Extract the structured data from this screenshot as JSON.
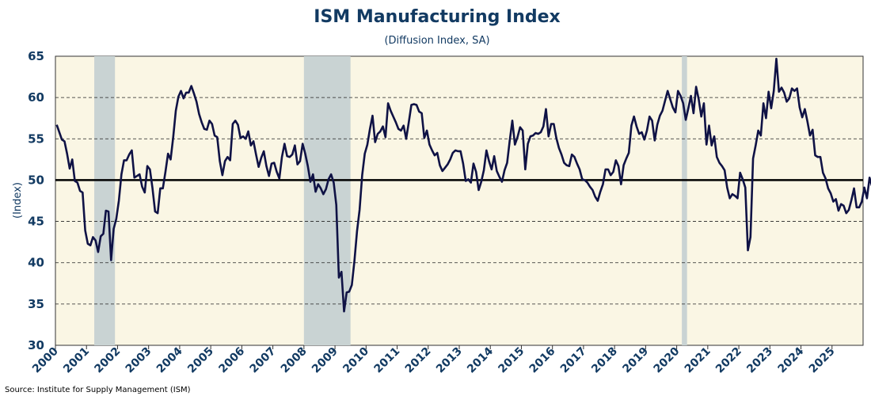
{
  "chart_data": {
    "type": "line",
    "title": "ISM Manufacturing Index",
    "subtitle": "(Diffusion Index, SA)",
    "ylabel": "(Index)",
    "source": "Source: Institute for Supply Management (ISM)",
    "ylim": [
      30,
      65
    ],
    "y_ticks": [
      "30",
      "35",
      "40",
      "45",
      "50",
      "55",
      "60",
      "65"
    ],
    "x_range": [
      "2000-01",
      "2025-12"
    ],
    "x_tick_labels": [
      "2000",
      "2001",
      "2002",
      "2003",
      "2004",
      "2005",
      "2006",
      "2007",
      "2008",
      "2009",
      "2010",
      "2011",
      "2012",
      "2013",
      "2014",
      "2015",
      "2016",
      "2017",
      "2018",
      "2019",
      "2020",
      "2021",
      "2022",
      "2023",
      "2024",
      "2025"
    ],
    "reference_line": 50,
    "grid": "horizontal dashed",
    "plot_background": "#faf6e4",
    "line_color": "#0f1245",
    "recession_color": "#c9d3d3",
    "recessions": [
      {
        "start": "2001-04",
        "end": "2001-11"
      },
      {
        "start": "2008-01",
        "end": "2009-06"
      },
      {
        "start": "2020-03",
        "end": "2020-04"
      }
    ],
    "series": [
      {
        "x_start": "2000-01",
        "frequency": "monthly",
        "values": [
          56.7,
          55.8,
          54.9,
          54.7,
          53.2,
          51.4,
          52.5,
          49.9,
          49.7,
          48.7,
          48.5,
          43.9,
          42.3,
          42.1,
          43.1,
          42.7,
          41.3,
          43.2,
          43.5,
          46.3,
          46.2,
          40.3,
          44.1,
          45.3,
          47.5,
          50.7,
          52.4,
          52.4,
          53.1,
          53.6,
          50.3,
          50.5,
          50.7,
          49.2,
          48.5,
          51.7,
          51.3,
          49.0,
          46.2,
          46.0,
          49.0,
          49.0,
          51.0,
          53.2,
          52.5,
          55.2,
          58.4,
          60.1,
          60.8,
          59.9,
          60.6,
          60.6,
          61.4,
          60.5,
          59.5,
          58.0,
          57.0,
          56.2,
          56.1,
          57.2,
          56.8,
          55.4,
          55.2,
          52.3,
          50.6,
          52.3,
          52.8,
          52.4,
          56.8,
          57.2,
          56.7,
          55.1,
          55.3,
          55.0,
          55.9,
          54.2,
          54.7,
          53.1,
          51.6,
          52.7,
          53.5,
          51.7,
          50.5,
          52.0,
          52.1,
          51.0,
          50.2,
          52.8,
          54.4,
          52.9,
          52.8,
          53.1,
          54.2,
          51.9,
          52.3,
          54.4,
          53.2,
          51.7,
          49.8,
          50.7,
          48.6,
          49.5,
          49.0,
          48.3,
          48.9,
          50.1,
          50.7,
          49.7,
          47.0,
          38.2,
          38.9,
          34.1,
          36.4,
          36.5,
          37.3,
          40.2,
          43.8,
          46.4,
          50.6,
          53.2,
          54.3,
          56.2,
          57.8,
          54.6,
          55.6,
          55.9,
          56.5,
          55.2,
          59.3,
          58.4,
          57.7,
          57.0,
          56.2,
          56.0,
          56.6,
          55.0,
          57.0,
          59.1,
          59.2,
          59.1,
          58.3,
          58.1,
          55.1,
          56.0,
          54.3,
          53.6,
          53.0,
          53.3,
          51.8,
          51.1,
          51.5,
          51.9,
          52.5,
          53.3,
          53.6,
          53.5,
          53.5,
          52.0,
          49.9,
          50.1,
          49.7,
          52.0,
          51.0,
          48.8,
          49.8,
          51.2,
          53.6,
          52.3,
          51.3,
          52.9,
          51.1,
          50.4,
          49.8,
          51.2,
          52.1,
          54.8,
          57.2,
          54.3,
          55.2,
          56.4,
          56.0,
          51.3,
          54.4,
          55.3,
          55.4,
          55.7,
          55.6,
          55.8,
          56.5,
          58.6,
          55.3,
          56.8,
          56.8,
          55.1,
          53.9,
          53.1,
          52.1,
          51.8,
          51.7,
          53.1,
          52.8,
          52.0,
          51.3,
          50.1,
          50.0,
          49.7,
          49.2,
          48.8,
          48.0,
          47.5,
          48.6,
          49.5,
          51.3,
          51.3,
          50.6,
          51.0,
          52.4,
          51.7,
          49.5,
          51.8,
          52.6,
          53.3,
          56.6,
          57.7,
          56.5,
          55.6,
          55.8,
          54.9,
          56.0,
          57.7,
          57.2,
          54.8,
          56.7,
          57.8,
          58.4,
          59.6,
          60.8,
          59.8,
          58.8,
          58.2,
          60.8,
          60.2,
          59.3,
          57.3,
          58.7,
          60.2,
          58.1,
          61.3,
          59.8,
          57.7,
          59.3,
          54.3,
          56.6,
          54.2,
          55.3,
          52.8,
          52.1,
          51.7,
          51.2,
          49.1,
          47.8,
          48.3,
          48.1,
          47.8,
          50.9,
          50.1,
          49.1,
          41.5,
          43.1,
          52.6,
          54.2,
          56.0,
          55.4,
          59.3,
          57.5,
          60.7,
          58.7,
          60.8,
          64.7,
          60.7,
          61.2,
          60.6,
          59.5,
          59.9,
          61.1,
          60.8,
          61.1,
          58.8,
          57.6,
          58.6,
          57.1,
          55.4,
          56.1,
          53.0,
          52.8,
          52.8,
          50.9,
          50.2,
          49.0,
          48.4,
          47.4,
          47.7,
          46.3,
          47.1,
          46.9,
          46.0,
          46.4,
          47.6,
          49.0,
          46.7,
          46.7,
          47.4,
          49.1,
          47.8,
          50.3,
          49.2,
          48.7,
          48.5,
          46.8,
          47.2,
          47.2,
          46.5,
          48.4,
          49.3,
          50.9,
          50.3,
          49.0,
          48.7,
          48.5,
          49.0,
          48.0,
          48.7,
          49.1,
          48.7
        ]
      }
    ]
  }
}
